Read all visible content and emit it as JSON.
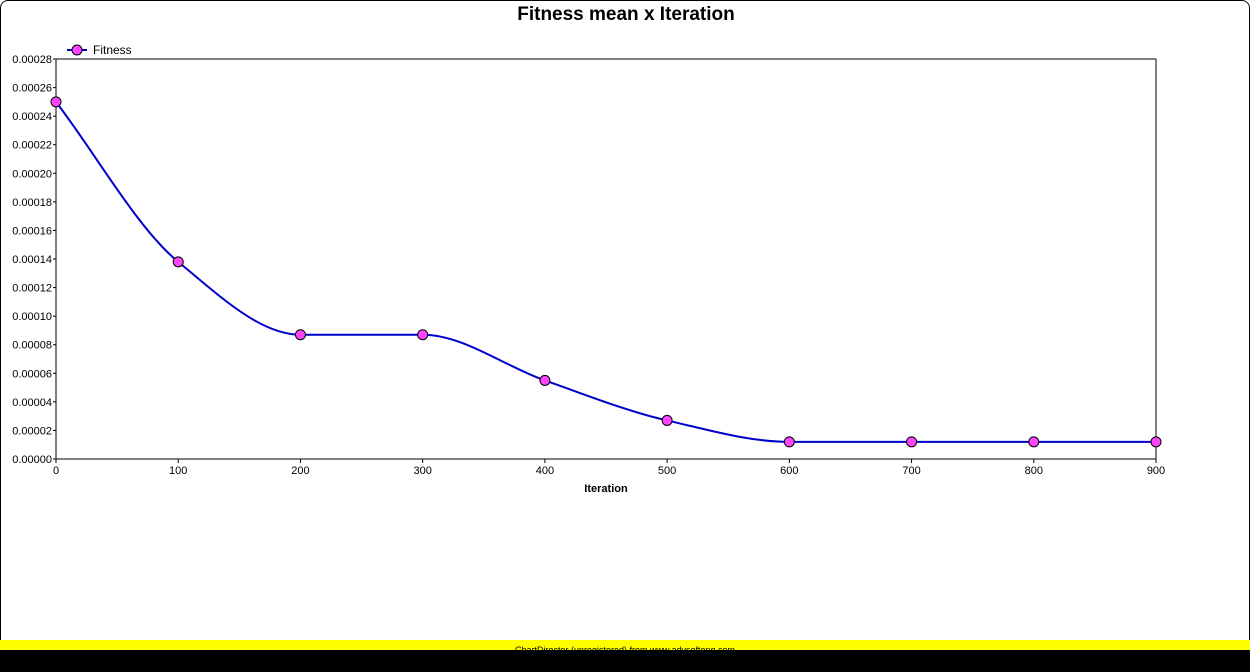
{
  "chart_data": {
    "type": "line",
    "title": "Fitness mean x Iteration",
    "xlabel": "Iteration",
    "ylabel": "",
    "x": [
      0,
      100,
      200,
      300,
      400,
      500,
      600,
      700,
      800,
      900
    ],
    "x_ticks": [
      "0",
      "100",
      "200",
      "300",
      "400",
      "500",
      "600",
      "700",
      "800",
      "900"
    ],
    "ylim": [
      0,
      0.00028
    ],
    "y_ticks": [
      "0.00000",
      "0.00002",
      "0.00004",
      "0.00006",
      "0.00008",
      "0.00010",
      "0.00012",
      "0.00014",
      "0.00016",
      "0.00018",
      "0.00020",
      "0.00022",
      "0.00024",
      "0.00026",
      "0.00028"
    ],
    "series": [
      {
        "name": "Fitness",
        "values": [
          0.00025,
          0.000138,
          8.7e-05,
          8.7e-05,
          5.5e-05,
          2.7e-05,
          1.2e-05,
          1.2e-05,
          1.2e-05,
          1.2e-05
        ],
        "line_color": "#0000cc",
        "marker_color": "#ff44ff"
      }
    ],
    "grid": false,
    "legend_position": "top-left",
    "smooth": true
  },
  "footer": {
    "text": "ChartDirector (unregistered) from www.advsofteng.com",
    "color": "#ffff00"
  }
}
